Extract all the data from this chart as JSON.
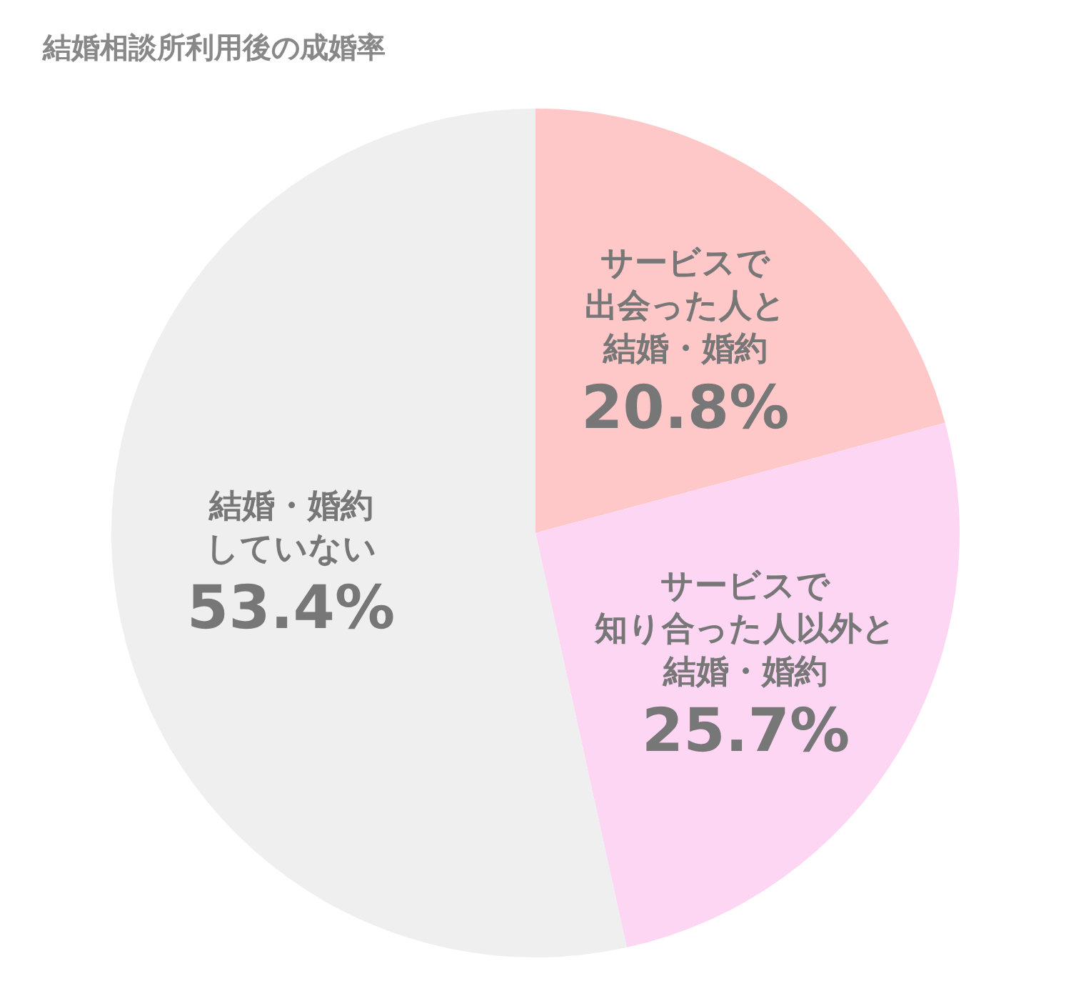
{
  "chart_data": {
    "type": "pie",
    "title": "結婚相談所利用後の成婚率",
    "categories": [
      "サービスで出会った人と結婚・婚約",
      "サービスで知り合った人以外と結婚・婚約",
      "結婚・婚約していない"
    ],
    "values": [
      20.8,
      25.7,
      53.4
    ],
    "value_labels": [
      "20.8%",
      "25.7%",
      "53.4%"
    ],
    "colors": [
      "#ffc8c8",
      "#fdd6f4",
      "#efefef"
    ]
  }
}
